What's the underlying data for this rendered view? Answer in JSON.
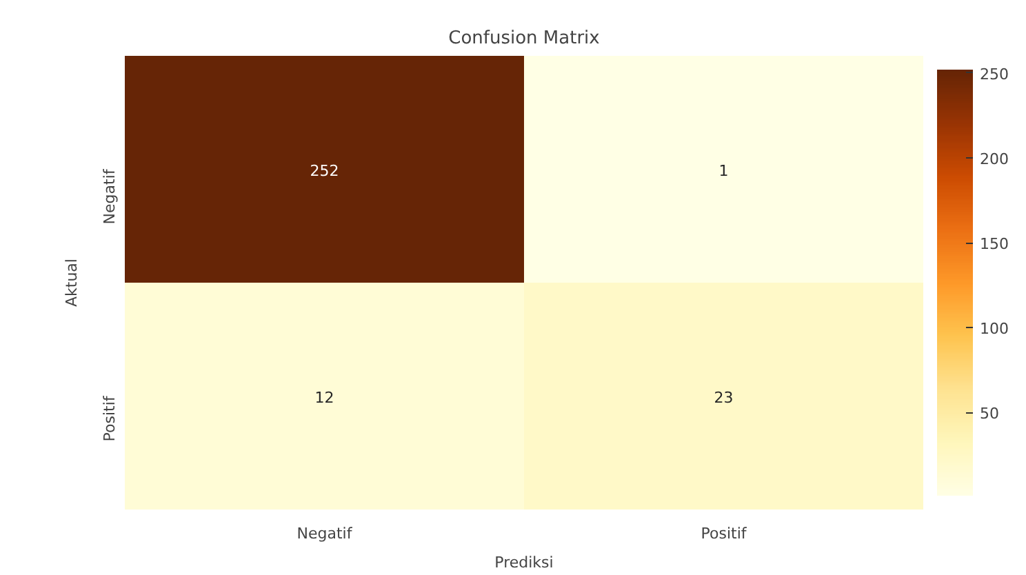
{
  "chart_data": {
    "type": "heatmap",
    "title": "Confusion Matrix",
    "xlabel": "Prediksi",
    "ylabel": "Aktual",
    "categories": [
      "Negatif",
      "Positif"
    ],
    "y_categories": [
      "Negatif",
      "Positif"
    ],
    "cells": [
      [
        252,
        1
      ],
      [
        12,
        23
      ]
    ],
    "data_labels": true,
    "clim": [
      1,
      252
    ],
    "cticks": [
      50,
      100,
      150,
      200,
      250
    ]
  }
}
